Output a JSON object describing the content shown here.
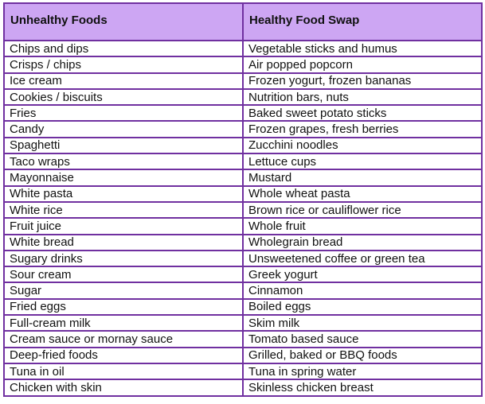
{
  "table": {
    "headers": [
      "Unhealthy Foods",
      "Healthy Food Swap"
    ],
    "rows": [
      [
        "Chips and dips",
        "Vegetable sticks and humus"
      ],
      [
        "Crisps / chips",
        "Air popped popcorn"
      ],
      [
        "Ice cream",
        "Frozen yogurt, frozen bananas"
      ],
      [
        "Cookies / biscuits",
        "Nutrition bars, nuts"
      ],
      [
        "Fries",
        "Baked sweet potato sticks"
      ],
      [
        "Candy",
        "Frozen grapes, fresh berries"
      ],
      [
        "Spaghetti",
        "Zucchini noodles"
      ],
      [
        "Taco wraps",
        "Lettuce cups"
      ],
      [
        "Mayonnaise",
        "Mustard"
      ],
      [
        "White pasta",
        "Whole wheat pasta"
      ],
      [
        "White rice",
        "Brown rice or cauliflower rice"
      ],
      [
        "Fruit juice",
        "Whole fruit"
      ],
      [
        "White bread",
        "Wholegrain bread"
      ],
      [
        "Sugary drinks",
        "Unsweetened coffee or green tea"
      ],
      [
        "Sour cream",
        "Greek yogurt"
      ],
      [
        "Sugar",
        "Cinnamon"
      ],
      [
        "Fried eggs",
        "Boiled eggs"
      ],
      [
        "Full-cream milk",
        "Skim milk"
      ],
      [
        "Cream sauce or mornay sauce",
        "Tomato based sauce"
      ],
      [
        "Deep-fried foods",
        "Grilled, baked or BBQ foods"
      ],
      [
        "Tuna in oil",
        "Tuna in spring water"
      ],
      [
        "Chicken with skin",
        "Skinless chicken breast"
      ]
    ]
  },
  "colors": {
    "header_background": "#cda6f3",
    "border": "#7030a0"
  }
}
